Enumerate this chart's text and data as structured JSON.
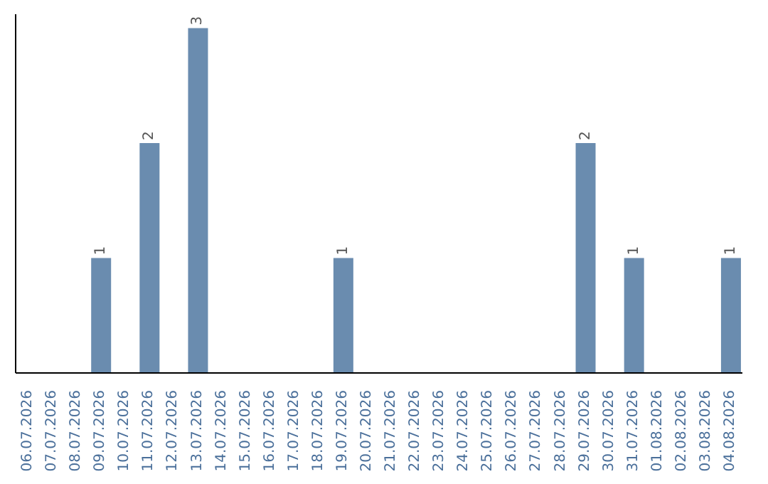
{
  "chart_data": {
    "type": "bar",
    "categories": [
      "06.07.2026",
      "07.07.2026",
      "08.07.2026",
      "09.07.2026",
      "10.07.2026",
      "11.07.2026",
      "12.07.2026",
      "13.07.2026",
      "14.07.2026",
      "15.07.2026",
      "16.07.2026",
      "17.07.2026",
      "18.07.2026",
      "19.07.2026",
      "20.07.2026",
      "21.07.2026",
      "22.07.2026",
      "23.07.2026",
      "24.07.2026",
      "25.07.2026",
      "26.07.2026",
      "27.07.2026",
      "28.07.2026",
      "29.07.2026",
      "30.07.2026",
      "31.07.2026",
      "01.08.2026",
      "02.08.2026",
      "03.08.2026",
      "04.08.2026"
    ],
    "values": [
      null,
      null,
      null,
      1,
      null,
      2,
      null,
      3,
      null,
      null,
      null,
      null,
      null,
      1,
      null,
      null,
      null,
      null,
      null,
      null,
      null,
      null,
      null,
      2,
      null,
      1,
      null,
      null,
      null,
      1
    ],
    "color": "#6a8caf",
    "data_labels": true,
    "grid": false
  }
}
